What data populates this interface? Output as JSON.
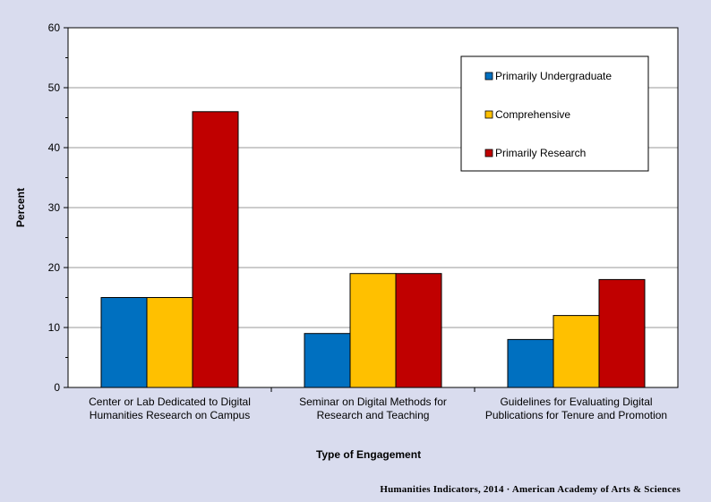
{
  "chart_data": {
    "type": "bar",
    "categories": [
      [
        "Center or Lab Dedicated to Digital",
        "Humanities Research on Campus"
      ],
      [
        "Seminar on Digital Methods for",
        "Research and Teaching"
      ],
      [
        "Guidelines for Evaluating Digital",
        "Publications for Tenure and Promotion"
      ]
    ],
    "series": [
      {
        "name": "Primarily Undergraduate",
        "color": "#0070c0",
        "values": [
          15,
          9,
          8
        ]
      },
      {
        "name": "Comprehensive",
        "color": "#ffc000",
        "values": [
          15,
          19,
          12
        ]
      },
      {
        "name": "Primarily Research",
        "color": "#c00000",
        "values": [
          46,
          19,
          18
        ]
      }
    ],
    "xlabel": "Type of Engagement",
    "ylabel": "Percent",
    "ylim": [
      0,
      60
    ],
    "yticks": [
      0,
      10,
      20,
      30,
      40,
      50,
      60
    ],
    "grid": true,
    "legend_position": "top-right"
  },
  "credit": "Humanities  Indicators, 2014 · American Academy of Arts & Sciences"
}
